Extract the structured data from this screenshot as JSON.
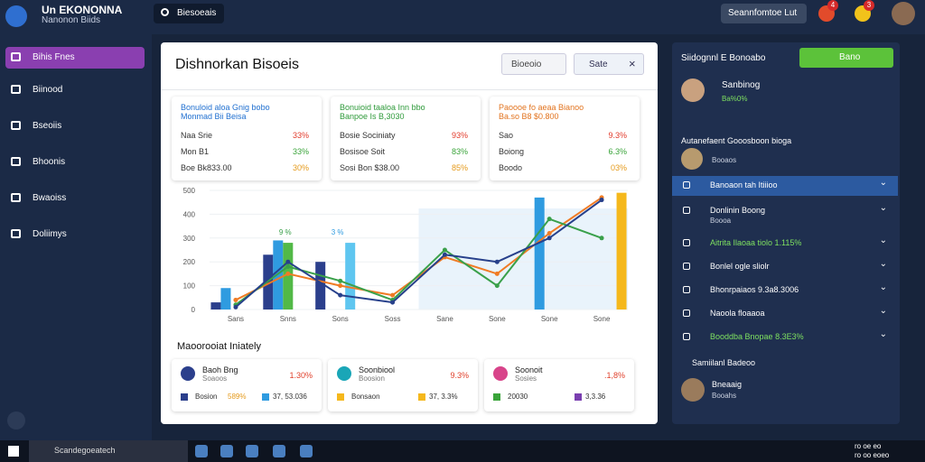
{
  "header": {
    "logo_title": "Un EKONONNA",
    "logo_subtitle": "Nanonon Biids",
    "search": "Biesoeais",
    "dropdown": "Seannfomtoe Lut",
    "badges": [
      "4",
      "3"
    ]
  },
  "sidebar": {
    "items": [
      "Bihis Fnes",
      "Biinood",
      "Bseoiis",
      "Bhoonis",
      "Bwaoiss",
      "Doliimys"
    ]
  },
  "main": {
    "title": "Dishnorkan Bisoeis",
    "filter": "Bioeoio",
    "button": "Sate",
    "cards": [
      {
        "title": "Bonuloid aloa Gnig bobo",
        "subtitle": "Monmad Bii Beisa",
        "rows": [
          [
            "Naa Srie",
            "33%"
          ],
          [
            "Mon B1",
            "33%"
          ],
          [
            "Boe Bk833.00",
            "30%"
          ]
        ]
      },
      {
        "title": "Bonuioid taaloa Inn bbo",
        "subtitle": "Banpoe Is B,3030",
        "rows": [
          [
            "Bosie Sociniaty",
            "93%"
          ],
          [
            "Bosisoe Soit",
            "83%"
          ],
          [
            "Sosi Bon $38.00",
            "85%"
          ]
        ]
      },
      {
        "title": "Paoooe fo aeaa Bianoo",
        "subtitle": "Ba.so B8 $0.800",
        "rows": [
          [
            "Sao",
            "9.3%"
          ],
          [
            "Boiong",
            "6.3%"
          ],
          [
            "Boodo",
            "03%"
          ]
        ]
      }
    ],
    "section_title": "Maoorooiat Iniately",
    "items": [
      {
        "name": "Baoh Bng",
        "sub": "Soaoos",
        "value": "1.30%",
        "foot_label": "Bosion",
        "foot_pct": "589%",
        "foot_value": "37, 53.036"
      },
      {
        "name": "Soonbiool",
        "sub": "Boosion",
        "value": "9.3%",
        "foot_label": "Bonsaon",
        "foot_pct": "",
        "foot_value": "37, 3.3%"
      },
      {
        "name": "Soonoit",
        "sub": "Sosies",
        "value": ".1,8%",
        "foot_label": "20030",
        "foot_pct": "",
        "foot_value": "3,3.36"
      }
    ]
  },
  "chart_data": {
    "type": "bar",
    "categories": [
      "Sans",
      "Snns",
      "Sons",
      "Soss",
      "Sane",
      "Sone",
      "Sone",
      "Sone"
    ],
    "ylim": [
      0,
      500
    ],
    "yticks": [
      0,
      100,
      200,
      300,
      400,
      500
    ],
    "annotations": [
      "9 %",
      "3 %"
    ],
    "series": [
      {
        "type": "bar",
        "color": "#2b3f8c",
        "values": [
          30,
          230,
          200,
          null,
          null,
          null,
          null,
          null
        ]
      },
      {
        "type": "bar",
        "color": "#2f9be0",
        "values": [
          90,
          290,
          null,
          null,
          null,
          null,
          470,
          null
        ]
      },
      {
        "type": "bar",
        "color": "#52b947",
        "values": [
          null,
          280,
          null,
          null,
          null,
          null,
          null,
          null
        ]
      },
      {
        "type": "bar",
        "color": "#5fc6f0",
        "values": [
          null,
          null,
          280,
          null,
          null,
          null,
          null,
          null
        ]
      },
      {
        "type": "bar",
        "color": "#f5b81c",
        "values": [
          null,
          null,
          null,
          null,
          null,
          null,
          null,
          490
        ]
      },
      {
        "type": "line",
        "color": "#f07b24",
        "values": [
          40,
          150,
          100,
          60,
          220,
          150,
          320,
          470
        ]
      },
      {
        "type": "line",
        "color": "#3aa04a",
        "values": [
          20,
          180,
          120,
          40,
          250,
          100,
          380,
          300
        ]
      },
      {
        "type": "line",
        "color": "#27408b",
        "values": [
          10,
          200,
          60,
          30,
          230,
          200,
          300,
          460
        ]
      }
    ]
  },
  "right_panel": {
    "title": "Siidognnl E Bonoabo",
    "button": "Bano",
    "profile": {
      "name": "Sanbinog",
      "sub": "Ba%0%"
    },
    "section": "Autanefaent Gooosboon bioga",
    "sub_profile": {
      "name": "Booaos"
    },
    "list": [
      {
        "label": "Banoaon tah Itiiioo",
        "sub": "",
        "color": "#ffffff",
        "highlight": true
      },
      {
        "label": "Donlinin Boong",
        "sub": "Boooa",
        "color": "#ffffff",
        "highlight": false
      },
      {
        "label": "Aitrita Ilaoaa tiolo 1.115%",
        "sub": "",
        "color": "#7ee060",
        "highlight": false
      },
      {
        "label": "Bonlel ogle sliolr",
        "sub": "",
        "color": "#ffffff",
        "highlight": false
      },
      {
        "label": "Bhonrpaiaos 9.3a8.3006",
        "sub": "",
        "color": "#ffffff",
        "highlight": false
      },
      {
        "label": "Naoola floaaoa",
        "sub": "",
        "color": "#ffffff",
        "highlight": false
      },
      {
        "label": "Booddba Bnopae 8.3E3%",
        "sub": "",
        "color": "#7ee060",
        "highlight": false
      }
    ],
    "footer_section": "Samiilanl Badeoo",
    "footer_profile": {
      "name": "Bneaaig",
      "sub": "Booahs"
    }
  },
  "taskbar": {
    "search": "Scandegoeatech",
    "clock": [
      "ro oe eo",
      "ro oo eoeo"
    ]
  }
}
